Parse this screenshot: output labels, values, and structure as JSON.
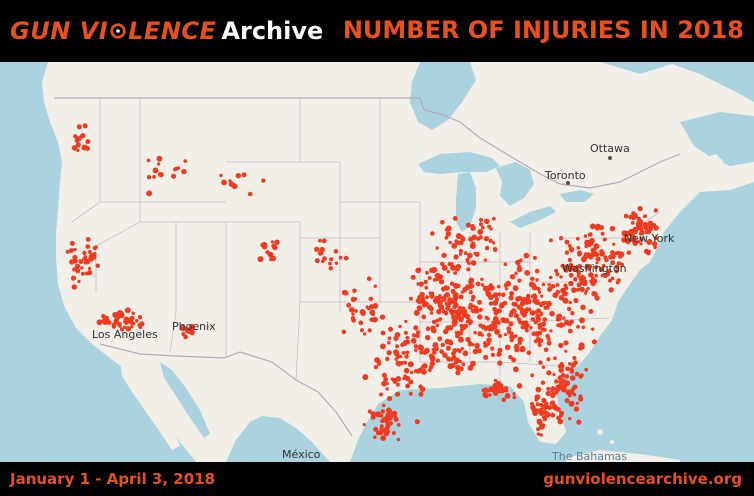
{
  "header": {
    "logo_text_left": "GUN VI",
    "logo_text_right": "LENCE",
    "logo_word": "Archive",
    "title": "NUMBER OF INJURIES IN 2018"
  },
  "footer": {
    "date_range": "January 1 - April 3, 2018",
    "website": "gunviolencearchive.org"
  },
  "map": {
    "labels": {
      "ottawa": "Ottawa",
      "toronto": "Toronto",
      "new_york": "New York",
      "washington": "Washington",
      "phoenix": "Phoenix",
      "los_angeles": "Los Angeles",
      "mexico": "México",
      "bahamas": "The Bahamas"
    },
    "colors": {
      "water": "#aad3df",
      "land": "#f2efe9",
      "border": "#b7a7b9",
      "incident": "#f03b20",
      "accent": "#e8511e"
    }
  }
}
